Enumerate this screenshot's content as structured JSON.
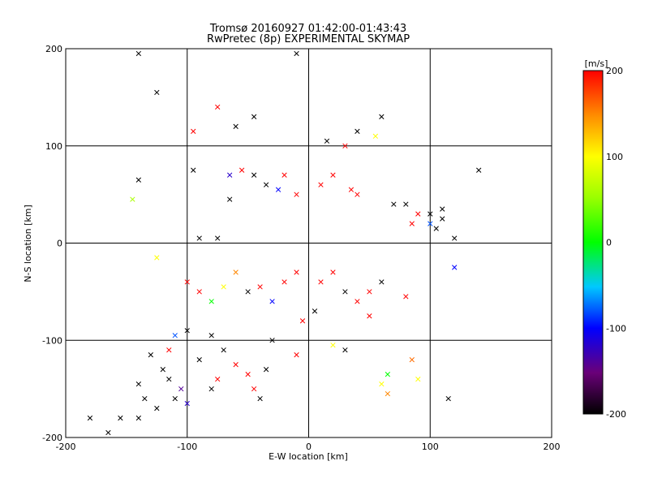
{
  "chart_data": {
    "type": "scatter",
    "title": "Tromsø 20160927 01:42:00-01:43:43",
    "subtitle": "RwPretec (8p) EXPERIMENTAL SKYMAP",
    "xlabel": "E-W location [km]",
    "ylabel": "N-S location [km]",
    "xlim": [
      -200,
      200
    ],
    "ylim": [
      -200,
      200
    ],
    "xticks": [
      "-200",
      "-100",
      "0",
      "100",
      "200"
    ],
    "yticks": [
      "-200",
      "-100",
      "0",
      "100",
      "200"
    ],
    "grid": true,
    "colorbar": {
      "label": "[m/s]",
      "min": -200,
      "max": 200,
      "ticks": [
        "200",
        "100",
        "0",
        "-100",
        "-200"
      ],
      "colormap": "black-purple-blue-cyan-green-yellow-orange-red"
    },
    "series": [
      {
        "marker": "x",
        "points": [
          {
            "x": -140,
            "y": 195,
            "v": -200
          },
          {
            "x": -125,
            "y": 155,
            "v": -200
          },
          {
            "x": -10,
            "y": 195,
            "v": -200
          },
          {
            "x": -95,
            "y": 115,
            "v": 200
          },
          {
            "x": -75,
            "y": 140,
            "v": 200
          },
          {
            "x": -60,
            "y": 120,
            "v": -200
          },
          {
            "x": -45,
            "y": 130,
            "v": -200
          },
          {
            "x": -95,
            "y": 75,
            "v": -200
          },
          {
            "x": -65,
            "y": 70,
            "v": -120
          },
          {
            "x": -55,
            "y": 75,
            "v": 200
          },
          {
            "x": -45,
            "y": 70,
            "v": -200
          },
          {
            "x": -35,
            "y": 60,
            "v": -200
          },
          {
            "x": -25,
            "y": 55,
            "v": -100
          },
          {
            "x": -20,
            "y": 70,
            "v": 200
          },
          {
            "x": -10,
            "y": 50,
            "v": 200
          },
          {
            "x": 10,
            "y": 60,
            "v": 200
          },
          {
            "x": 20,
            "y": 70,
            "v": 200
          },
          {
            "x": -140,
            "y": 65,
            "v": -200
          },
          {
            "x": -145,
            "y": 45,
            "v": 60
          },
          {
            "x": -90,
            "y": 5,
            "v": -200
          },
          {
            "x": -75,
            "y": 5,
            "v": -200
          },
          {
            "x": -65,
            "y": 45,
            "v": -200
          },
          {
            "x": 30,
            "y": 100,
            "v": 200
          },
          {
            "x": 40,
            "y": 115,
            "v": -200
          },
          {
            "x": 60,
            "y": 130,
            "v": -200
          },
          {
            "x": 55,
            "y": 110,
            "v": 100
          },
          {
            "x": 15,
            "y": 105,
            "v": -200
          },
          {
            "x": 35,
            "y": 55,
            "v": 200
          },
          {
            "x": 40,
            "y": 50,
            "v": 200
          },
          {
            "x": 80,
            "y": 40,
            "v": -200
          },
          {
            "x": 90,
            "y": 30,
            "v": 200
          },
          {
            "x": 100,
            "y": 20,
            "v": -80
          },
          {
            "x": 105,
            "y": 15,
            "v": -200
          },
          {
            "x": 110,
            "y": 25,
            "v": -200
          },
          {
            "x": 120,
            "y": 5,
            "v": -200
          },
          {
            "x": 140,
            "y": 75,
            "v": -200
          },
          {
            "x": 70,
            "y": 40,
            "v": -200
          },
          {
            "x": 85,
            "y": 20,
            "v": 200
          },
          {
            "x": 100,
            "y": 30,
            "v": -200
          },
          {
            "x": 110,
            "y": 35,
            "v": -200
          },
          {
            "x": -125,
            "y": -15,
            "v": 100
          },
          {
            "x": -100,
            "y": -40,
            "v": 200
          },
          {
            "x": -90,
            "y": -50,
            "v": 200
          },
          {
            "x": -80,
            "y": -60,
            "v": 0
          },
          {
            "x": -70,
            "y": -45,
            "v": 100
          },
          {
            "x": -60,
            "y": -30,
            "v": 150
          },
          {
            "x": -50,
            "y": -50,
            "v": -200
          },
          {
            "x": -40,
            "y": -45,
            "v": 200
          },
          {
            "x": -30,
            "y": -60,
            "v": -100
          },
          {
            "x": -20,
            "y": -40,
            "v": 200
          },
          {
            "x": -10,
            "y": -30,
            "v": 200
          },
          {
            "x": 10,
            "y": -40,
            "v": 200
          },
          {
            "x": 20,
            "y": -30,
            "v": 200
          },
          {
            "x": 30,
            "y": -50,
            "v": -200
          },
          {
            "x": 40,
            "y": -60,
            "v": 200
          },
          {
            "x": 50,
            "y": -50,
            "v": 200
          },
          {
            "x": 60,
            "y": -40,
            "v": -200
          },
          {
            "x": 80,
            "y": -55,
            "v": 200
          },
          {
            "x": 120,
            "y": -25,
            "v": -100
          },
          {
            "x": 115,
            "y": -160,
            "v": -200
          },
          {
            "x": 90,
            "y": -140,
            "v": 100
          },
          {
            "x": 85,
            "y": -120,
            "v": 160
          },
          {
            "x": 65,
            "y": -135,
            "v": 0
          },
          {
            "x": 60,
            "y": -145,
            "v": 100
          },
          {
            "x": 65,
            "y": -155,
            "v": 150
          },
          {
            "x": 50,
            "y": -75,
            "v": 200
          },
          {
            "x": 30,
            "y": -110,
            "v": -200
          },
          {
            "x": 20,
            "y": -105,
            "v": 100
          },
          {
            "x": -10,
            "y": -115,
            "v": 200
          },
          {
            "x": -30,
            "y": -100,
            "v": -200
          },
          {
            "x": -40,
            "y": -160,
            "v": -200
          },
          {
            "x": -50,
            "y": -135,
            "v": 200
          },
          {
            "x": -60,
            "y": -125,
            "v": 200
          },
          {
            "x": -70,
            "y": -110,
            "v": -200
          },
          {
            "x": -80,
            "y": -95,
            "v": -200
          },
          {
            "x": -90,
            "y": -120,
            "v": -200
          },
          {
            "x": -100,
            "y": -90,
            "v": -200
          },
          {
            "x": -110,
            "y": -95,
            "v": -80
          },
          {
            "x": -120,
            "y": -130,
            "v": -200
          },
          {
            "x": -115,
            "y": -140,
            "v": -200
          },
          {
            "x": -110,
            "y": -160,
            "v": -200
          },
          {
            "x": -105,
            "y": -150,
            "v": -140
          },
          {
            "x": -100,
            "y": -165,
            "v": -120
          },
          {
            "x": -125,
            "y": -170,
            "v": -200
          },
          {
            "x": -140,
            "y": -180,
            "v": -200
          },
          {
            "x": -155,
            "y": -180,
            "v": -200
          },
          {
            "x": -165,
            "y": -195,
            "v": -200
          },
          {
            "x": -180,
            "y": -180,
            "v": -200
          },
          {
            "x": -135,
            "y": -160,
            "v": -200
          },
          {
            "x": -140,
            "y": -145,
            "v": -200
          },
          {
            "x": -130,
            "y": -115,
            "v": -200
          },
          {
            "x": -115,
            "y": -110,
            "v": 200
          },
          {
            "x": -80,
            "y": -150,
            "v": -200
          },
          {
            "x": -75,
            "y": -140,
            "v": 200
          },
          {
            "x": -45,
            "y": -150,
            "v": 200
          },
          {
            "x": -35,
            "y": -130,
            "v": -200
          },
          {
            "x": -5,
            "y": -80,
            "v": 200
          },
          {
            "x": 5,
            "y": -70,
            "v": -200
          }
        ]
      }
    ]
  }
}
